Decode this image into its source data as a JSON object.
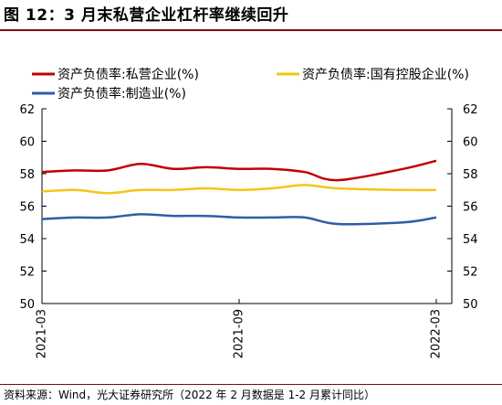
{
  "title": "图 12：3 月末私营企业杠杆率继续回升",
  "source": "资料来源：Wind，光大证券研究所（2022 年 2 月数据是 1-2 月累计同比）",
  "chart_data": {
    "type": "line",
    "title": "",
    "xlabel": "",
    "ylabel": "",
    "ylim": [
      50,
      62
    ],
    "y_ticks": [
      "50",
      "52",
      "54",
      "56",
      "58",
      "60",
      "62"
    ],
    "x_tick_labels": [
      "2021-03",
      "2021-09",
      "2022-03"
    ],
    "legend_position": "top",
    "grid": false,
    "x": [
      "2021-03",
      "2021-04",
      "2021-05",
      "2021-06",
      "2021-07",
      "2021-08",
      "2021-09",
      "2021-10",
      "2021-11",
      "2021-12",
      "2022-02",
      "2022-03"
    ],
    "series": [
      {
        "name": "资产负债率:私营企业(%)",
        "color": "#c00000",
        "values": [
          58.1,
          58.2,
          58.2,
          58.6,
          58.3,
          58.4,
          58.3,
          58.3,
          58.1,
          57.6,
          58.3,
          58.8
        ]
      },
      {
        "name": "资产负债率:国有控股企业(%)",
        "color": "#f5c518",
        "values": [
          56.9,
          57.0,
          56.8,
          57.0,
          57.0,
          57.1,
          57.0,
          57.1,
          57.3,
          57.1,
          57.0,
          57.0
        ]
      },
      {
        "name": "资产负债率:制造业(%)",
        "color": "#2e5ea8",
        "values": [
          55.2,
          55.3,
          55.3,
          55.5,
          55.4,
          55.4,
          55.3,
          55.3,
          55.3,
          54.9,
          55.0,
          55.3
        ]
      }
    ]
  }
}
